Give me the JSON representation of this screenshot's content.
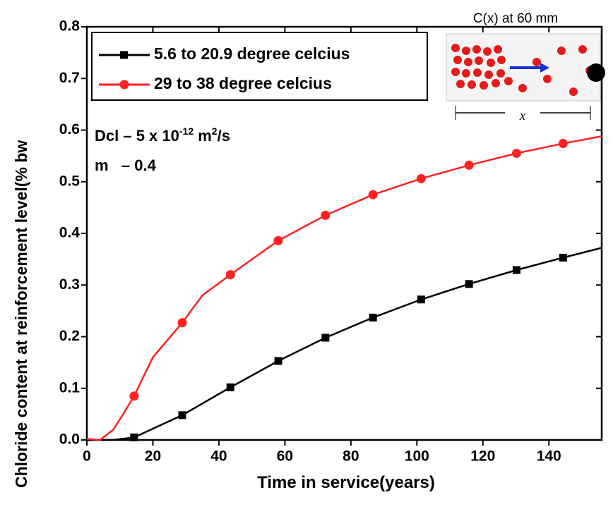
{
  "chart_data": {
    "type": "line",
    "x_label": "Time in service(years)",
    "y_label": "Chloride content at reinforcement level(% bw",
    "xlim": [
      0,
      156
    ],
    "ylim": [
      0,
      0.8
    ],
    "xticks": [
      0,
      20,
      40,
      60,
      80,
      100,
      120,
      140
    ],
    "yticks": [
      {
        "value": 0,
        "label": "0.0"
      },
      0.1,
      0.2,
      0.3,
      0.4,
      0.5,
      0.6,
      0.7,
      0.8
    ],
    "series": [
      {
        "name": "5.6 to 20.9 degree celcius",
        "color": "#000000",
        "marker": "square",
        "x": [
          0,
          8,
          14.3,
          28.9,
          43.5,
          58,
          72.3,
          86.7,
          101.3,
          115.8,
          130.2,
          144.3,
          156
        ],
        "values": [
          0,
          0,
          0.005,
          0.048,
          0.102,
          0.153,
          0.198,
          0.237,
          0.272,
          0.302,
          0.329,
          0.353,
          0.372
        ],
        "marker_x": [
          14.3,
          28.9,
          43.5,
          58,
          72.3,
          86.7,
          101.3,
          115.8,
          130.2,
          144.3
        ],
        "marker_values": [
          0.005,
          0.048,
          0.102,
          0.153,
          0.198,
          0.237,
          0.272,
          0.302,
          0.329,
          0.353
        ]
      },
      {
        "name": "29 to 38 degree celcius",
        "color": "#ff2020",
        "marker": "circle",
        "x": [
          0,
          4,
          8,
          11,
          14.3,
          20,
          28.9,
          35,
          43.5,
          58,
          72.3,
          86.7,
          101.3,
          115.8,
          130.2,
          144.3,
          156
        ],
        "values": [
          0.002,
          0,
          0.02,
          0.05,
          0.085,
          0.16,
          0.227,
          0.28,
          0.32,
          0.386,
          0.435,
          0.475,
          0.506,
          0.532,
          0.555,
          0.574,
          0.588
        ],
        "marker_x": [
          14.3,
          28.9,
          43.5,
          58,
          72.3,
          86.7,
          101.3,
          115.8,
          130.2,
          144.3
        ],
        "marker_values": [
          0.085,
          0.227,
          0.32,
          0.386,
          0.435,
          0.475,
          0.506,
          0.532,
          0.555,
          0.574
        ]
      }
    ],
    "legend": "upper left",
    "annotations": {
      "dcl": "Dcl – 5 x 10",
      "dcl_exp": "-12",
      "dcl_unit": " m",
      "dcl_unit_exp": "2",
      "dcl_unit_tail": "/s",
      "m": "m   – 0.4"
    },
    "inset": {
      "title": "C(x) at 60 mm",
      "x_label": "x"
    }
  }
}
